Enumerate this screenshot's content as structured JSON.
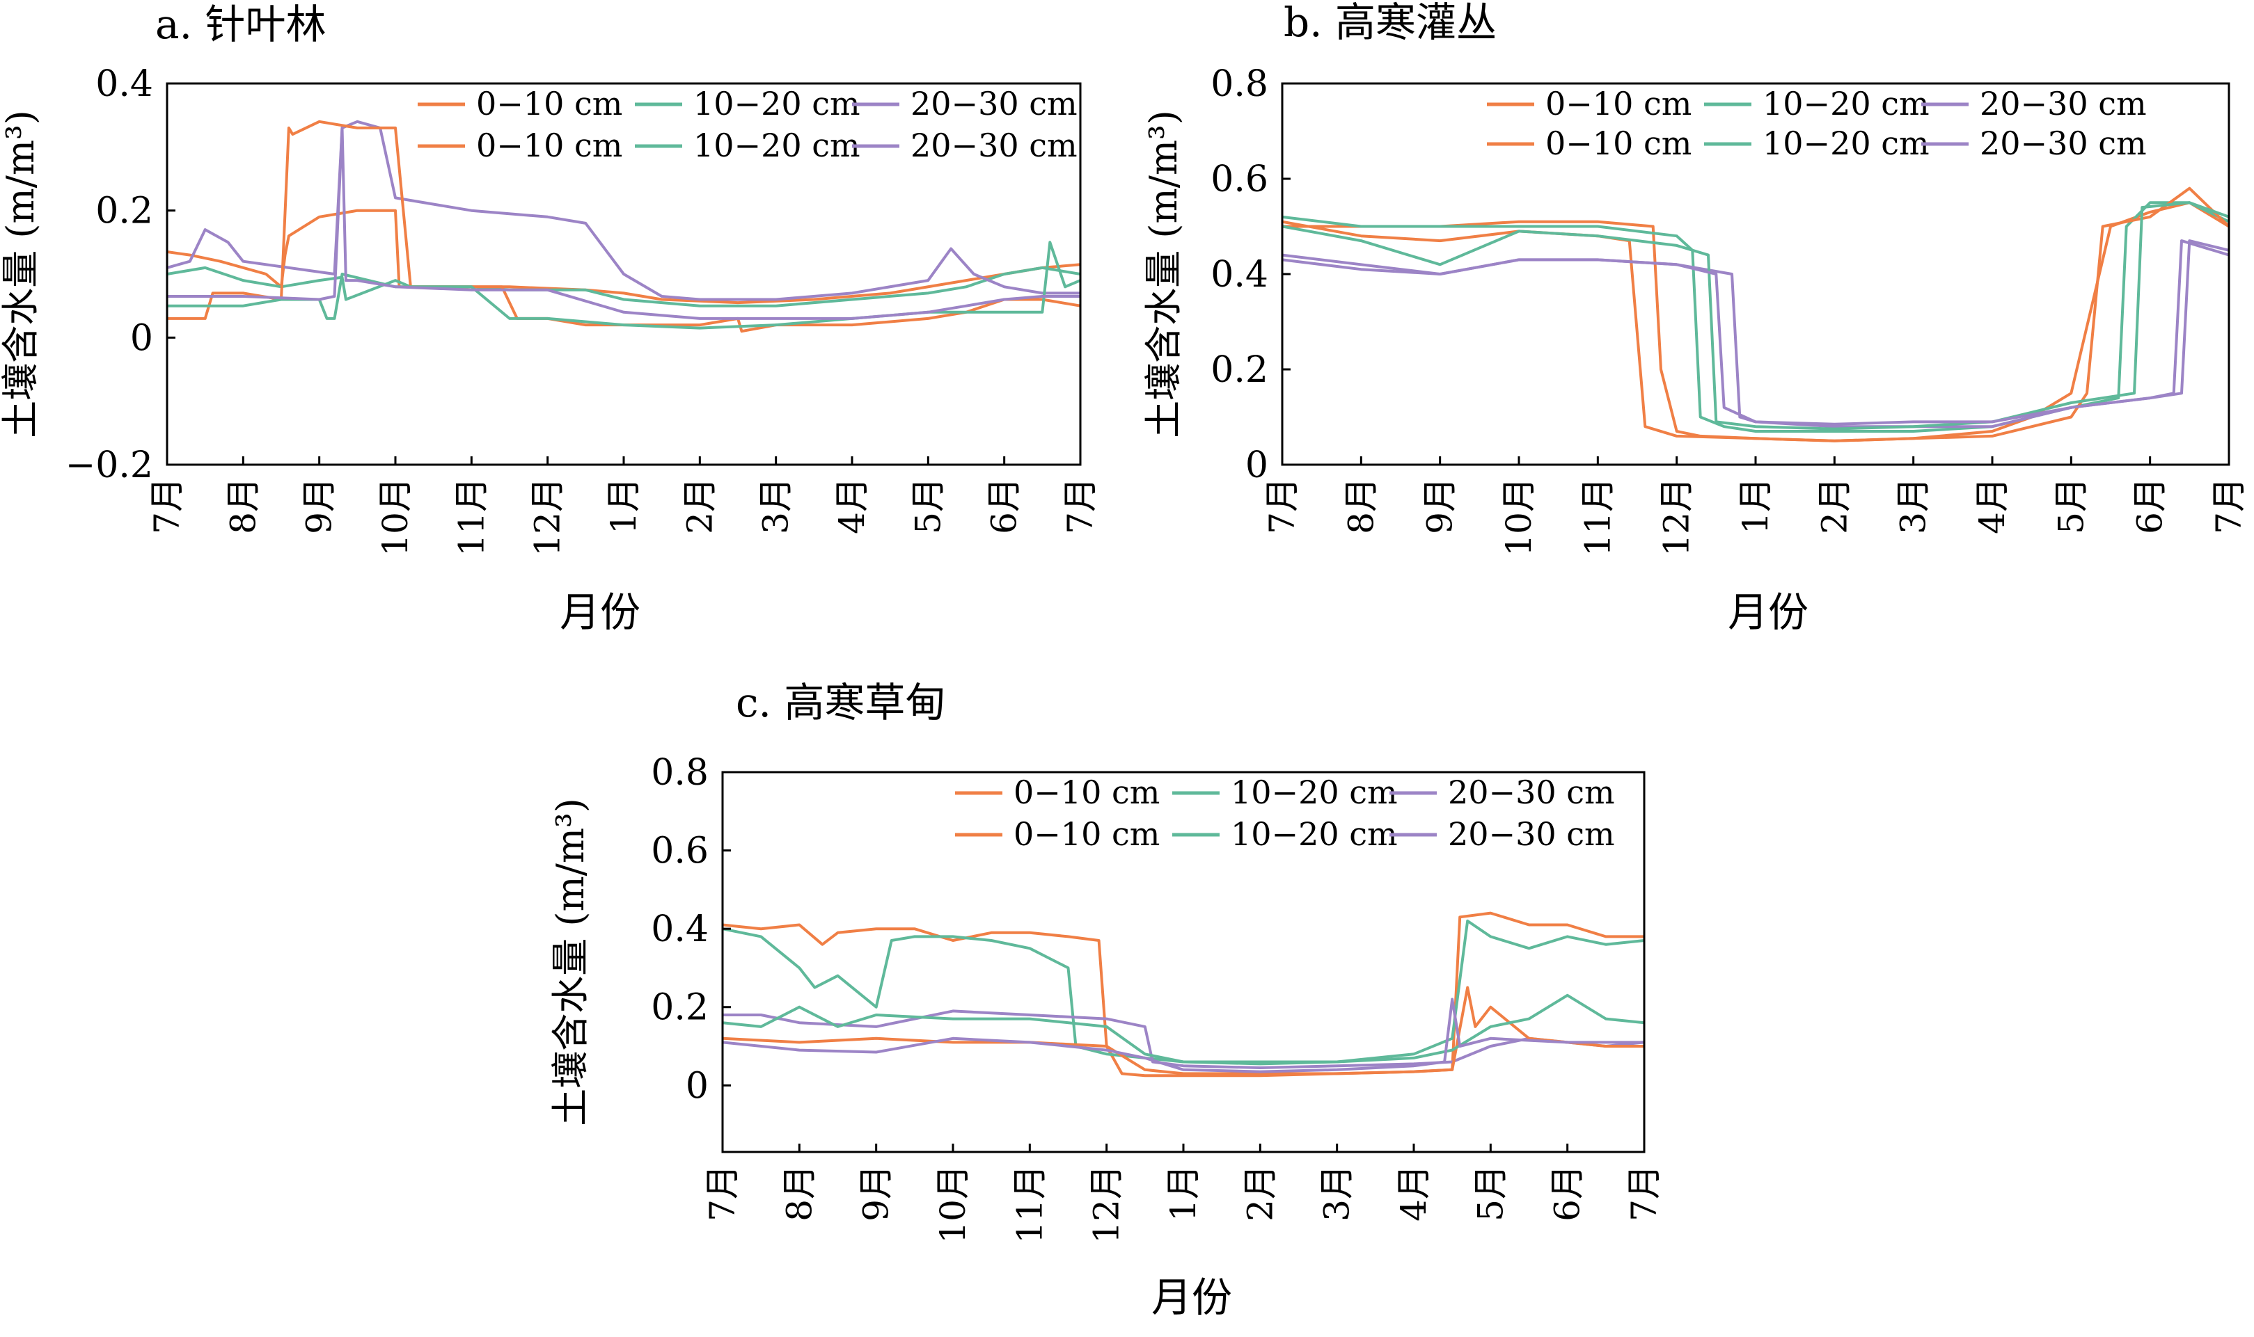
{
  "colors": {
    "orange": "#F07F45",
    "teal": "#5FB99A",
    "purple": "#9C84C6"
  },
  "chart_data": [
    {
      "type": "line",
      "title": "a. 针叶林",
      "xlabel": "月份",
      "ylabel": "土壤含水量 (m/m³)",
      "x_ticks": [
        "7月",
        "8月",
        "9月",
        "10月",
        "11月",
        "12月",
        "1月",
        "2月",
        "3月",
        "4月",
        "5月",
        "6月",
        "7月"
      ],
      "yticks": [
        "−0.2",
        "0",
        "0.2",
        "0.4"
      ],
      "ylim": [
        -0.2,
        0.4
      ],
      "legend": [
        "0−10 cm",
        "10−20 cm",
        "20−30 cm",
        "0−10 cm",
        "10−20 cm",
        "20−30 cm"
      ],
      "legend_position": "top-right",
      "series": [
        {
          "name": "0−10 cm",
          "color": "orange",
          "x": [
            0,
            0.3,
            0.7,
            1.3,
            1.5,
            1.55,
            1.6,
            2.0,
            2.5,
            3.0,
            3.05,
            3.5,
            4.0,
            4.5,
            5.5,
            6.0,
            6.5,
            7.5,
            8.5,
            9.5,
            10.5,
            11.0,
            11.5,
            12.0
          ],
          "y": [
            0.135,
            0.13,
            0.12,
            0.1,
            0.08,
            0.13,
            0.16,
            0.19,
            0.2,
            0.2,
            0.08,
            0.08,
            0.08,
            0.08,
            0.075,
            0.07,
            0.06,
            0.055,
            0.06,
            0.07,
            0.09,
            0.1,
            0.11,
            0.115
          ]
        },
        {
          "name": "10−20 cm",
          "color": "teal",
          "x": [
            0,
            0.5,
            1.0,
            1.5,
            2.0,
            2.3,
            2.35,
            3.0,
            3.2,
            3.5,
            4.0,
            4.5,
            5.0,
            5.5,
            6.0,
            7.0,
            8.0,
            9.0,
            10.0,
            10.5,
            11.0,
            11.5,
            12.0
          ],
          "y": [
            0.1,
            0.11,
            0.09,
            0.08,
            0.09,
            0.095,
            0.06,
            0.09,
            0.08,
            0.08,
            0.08,
            0.075,
            0.075,
            0.075,
            0.06,
            0.05,
            0.05,
            0.06,
            0.07,
            0.08,
            0.1,
            0.11,
            0.1
          ]
        },
        {
          "name": "20−30 cm",
          "color": "purple",
          "x": [
            0,
            0.3,
            0.5,
            0.8,
            1.0,
            2.2,
            2.3,
            2.5,
            2.8,
            3.0,
            4.0,
            5.0,
            5.5,
            6.0,
            6.5,
            7.0,
            8.0,
            9.0,
            10.0,
            10.3,
            10.6,
            11.0,
            11.5,
            12.0
          ],
          "y": [
            0.11,
            0.12,
            0.17,
            0.15,
            0.12,
            0.1,
            0.33,
            0.34,
            0.33,
            0.22,
            0.2,
            0.19,
            0.18,
            0.1,
            0.065,
            0.06,
            0.06,
            0.07,
            0.09,
            0.14,
            0.1,
            0.08,
            0.07,
            0.07
          ]
        },
        {
          "name": "0−10 cm",
          "color": "orange",
          "x": [
            0,
            0.5,
            0.6,
            1.0,
            1.5,
            1.6,
            1.65,
            2.0,
            2.5,
            3.0,
            3.2,
            3.5,
            4.0,
            4.4,
            4.6,
            5.0,
            5.5,
            6.0,
            7.0,
            7.5,
            7.55,
            8.0,
            9.0,
            10.0,
            10.5,
            11.0,
            11.5,
            12.0
          ],
          "y": [
            0.03,
            0.03,
            0.07,
            0.07,
            0.06,
            0.33,
            0.32,
            0.34,
            0.33,
            0.33,
            0.08,
            0.08,
            0.08,
            0.08,
            0.03,
            0.03,
            0.02,
            0.02,
            0.02,
            0.03,
            0.01,
            0.02,
            0.02,
            0.03,
            0.04,
            0.06,
            0.06,
            0.05
          ]
        },
        {
          "name": "10−20 cm",
          "color": "teal",
          "x": [
            0,
            0.5,
            1.0,
            1.5,
            2.0,
            2.1,
            2.2,
            2.3,
            3.0,
            4.0,
            4.5,
            5.0,
            6.0,
            7.0,
            8.0,
            9.0,
            10.0,
            10.5,
            11.0,
            11.5,
            11.6,
            11.8,
            12.0
          ],
          "y": [
            0.05,
            0.05,
            0.05,
            0.06,
            0.06,
            0.03,
            0.03,
            0.1,
            0.08,
            0.08,
            0.03,
            0.03,
            0.02,
            0.015,
            0.02,
            0.03,
            0.04,
            0.04,
            0.04,
            0.04,
            0.15,
            0.08,
            0.09
          ]
        },
        {
          "name": "20−30 cm",
          "color": "purple",
          "x": [
            0,
            1.0,
            2.0,
            2.2,
            2.3,
            2.35,
            2.5,
            3.0,
            4.0,
            5.0,
            6.0,
            7.0,
            8.0,
            9.0,
            10.0,
            10.5,
            11.0,
            11.5,
            12.0
          ],
          "y": [
            0.065,
            0.065,
            0.06,
            0.065,
            0.33,
            0.09,
            0.09,
            0.08,
            0.075,
            0.075,
            0.04,
            0.03,
            0.03,
            0.03,
            0.04,
            0.05,
            0.06,
            0.065,
            0.065
          ]
        }
      ]
    },
    {
      "type": "line",
      "title": "b. 高寒灌丛",
      "xlabel": "月份",
      "ylabel": "土壤含水量 (m/m³)",
      "x_ticks": [
        "7月",
        "8月",
        "9月",
        "10月",
        "11月",
        "12月",
        "1月",
        "2月",
        "3月",
        "4月",
        "5月",
        "6月",
        "7月"
      ],
      "yticks": [
        "0",
        "0.2",
        "0.4",
        "0.6",
        "0.8"
      ],
      "ylim": [
        0,
        0.8
      ],
      "legend": [
        "0−10 cm",
        "10−20 cm",
        "20−30 cm",
        "0−10 cm",
        "10−20 cm",
        "20−30 cm"
      ],
      "legend_position": "top-right",
      "series": [
        {
          "name": "0−10 cm",
          "color": "orange",
          "x": [
            0,
            1.0,
            2.0,
            3.0,
            4.0,
            4.7,
            4.8,
            5.0,
            5.3,
            6.0,
            7.0,
            8.0,
            9.0,
            9.5,
            10.0,
            10.5,
            11.0,
            11.5,
            12.0
          ],
          "y": [
            0.5,
            0.5,
            0.5,
            0.51,
            0.51,
            0.5,
            0.2,
            0.07,
            0.06,
            0.055,
            0.05,
            0.055,
            0.07,
            0.1,
            0.15,
            0.5,
            0.53,
            0.55,
            0.5
          ]
        },
        {
          "name": "10−20 cm",
          "color": "teal",
          "x": [
            0,
            1.0,
            2.0,
            3.0,
            4.0,
            5.0,
            5.2,
            5.3,
            5.6,
            6.0,
            7.0,
            8.0,
            9.0,
            10.0,
            10.6,
            10.7,
            11.0,
            11.5,
            12.0
          ],
          "y": [
            0.52,
            0.5,
            0.5,
            0.5,
            0.5,
            0.48,
            0.45,
            0.1,
            0.08,
            0.07,
            0.07,
            0.07,
            0.08,
            0.12,
            0.14,
            0.5,
            0.55,
            0.55,
            0.51
          ]
        },
        {
          "name": "20−30 cm",
          "color": "purple",
          "x": [
            0,
            1.0,
            2.0,
            3.0,
            4.0,
            5.0,
            5.7,
            5.8,
            6.0,
            7.0,
            8.0,
            9.0,
            10.0,
            11.0,
            11.3,
            11.4,
            12.0
          ],
          "y": [
            0.44,
            0.42,
            0.4,
            0.43,
            0.43,
            0.42,
            0.4,
            0.1,
            0.09,
            0.08,
            0.08,
            0.08,
            0.12,
            0.14,
            0.15,
            0.47,
            0.44
          ]
        },
        {
          "name": "0−10 cm",
          "color": "orange",
          "x": [
            0,
            1.0,
            2.0,
            3.0,
            4.0,
            4.4,
            4.6,
            5.0,
            6.0,
            7.0,
            8.0,
            9.0,
            10.0,
            10.2,
            10.4,
            11.0,
            11.5,
            12.0
          ],
          "y": [
            0.51,
            0.48,
            0.47,
            0.49,
            0.48,
            0.47,
            0.08,
            0.06,
            0.055,
            0.05,
            0.055,
            0.06,
            0.1,
            0.15,
            0.5,
            0.52,
            0.58,
            0.5
          ]
        },
        {
          "name": "10−20 cm",
          "color": "teal",
          "x": [
            0,
            1.0,
            2.0,
            3.0,
            4.0,
            5.0,
            5.4,
            5.5,
            6.0,
            7.0,
            8.0,
            9.0,
            10.0,
            10.8,
            10.9,
            11.5,
            12.0
          ],
          "y": [
            0.5,
            0.47,
            0.42,
            0.49,
            0.48,
            0.46,
            0.44,
            0.09,
            0.08,
            0.075,
            0.08,
            0.09,
            0.13,
            0.15,
            0.54,
            0.55,
            0.52
          ]
        },
        {
          "name": "20−30 cm",
          "color": "purple",
          "x": [
            0,
            1.0,
            2.0,
            3.0,
            4.0,
            5.0,
            5.5,
            5.6,
            6.0,
            7.0,
            8.0,
            9.0,
            10.0,
            11.0,
            11.4,
            11.5,
            12.0
          ],
          "y": [
            0.43,
            0.41,
            0.4,
            0.43,
            0.43,
            0.42,
            0.4,
            0.12,
            0.09,
            0.085,
            0.09,
            0.09,
            0.12,
            0.14,
            0.15,
            0.47,
            0.45
          ]
        }
      ]
    },
    {
      "type": "line",
      "title": "c. 高寒草甸",
      "xlabel": "月份",
      "ylabel": "土壤含水量 (m/m³)",
      "x_ticks": [
        "7月",
        "8月",
        "9月",
        "10月",
        "11月",
        "12月",
        "1月",
        "2月",
        "3月",
        "4月",
        "5月",
        "6月",
        "7月"
      ],
      "yticks": [
        "0",
        "0.2",
        "0.4",
        "0.6",
        "0.8"
      ],
      "ylim": [
        -0.17,
        0.8
      ],
      "legend": [
        "0−10 cm",
        "10−20 cm",
        "20−30 cm",
        "0−10 cm",
        "10−20 cm",
        "20−30 cm"
      ],
      "legend_position": "top-right",
      "series": [
        {
          "name": "0−10 cm",
          "color": "orange",
          "x": [
            0,
            0.5,
            1.0,
            1.3,
            1.5,
            2.0,
            2.5,
            3.0,
            3.5,
            4.0,
            4.5,
            4.9,
            5.0,
            5.2,
            5.5,
            6.0,
            7.0,
            8.0,
            9.0,
            9.5,
            9.6,
            10.0,
            10.5,
            11.0,
            11.5,
            12.0
          ],
          "y": [
            0.41,
            0.4,
            0.41,
            0.36,
            0.39,
            0.4,
            0.4,
            0.37,
            0.39,
            0.39,
            0.38,
            0.37,
            0.1,
            0.03,
            0.025,
            0.025,
            0.025,
            0.03,
            0.035,
            0.04,
            0.43,
            0.44,
            0.41,
            0.41,
            0.38,
            0.38
          ]
        },
        {
          "name": "10−20 cm",
          "color": "teal",
          "x": [
            0,
            0.5,
            1.0,
            1.2,
            1.5,
            2.0,
            2.2,
            2.5,
            3.0,
            3.5,
            4.0,
            4.5,
            4.6,
            5.0,
            5.5,
            6.0,
            7.0,
            8.0,
            9.0,
            9.5,
            9.7,
            10.0,
            10.5,
            11.0,
            11.5,
            12.0
          ],
          "y": [
            0.4,
            0.38,
            0.3,
            0.25,
            0.28,
            0.2,
            0.37,
            0.38,
            0.38,
            0.37,
            0.35,
            0.3,
            0.1,
            0.08,
            0.07,
            0.06,
            0.06,
            0.06,
            0.08,
            0.12,
            0.42,
            0.38,
            0.35,
            0.38,
            0.36,
            0.37
          ]
        },
        {
          "name": "20−30 cm",
          "color": "purple",
          "x": [
            0,
            0.5,
            1.0,
            2.0,
            3.0,
            4.0,
            5.0,
            5.5,
            5.6,
            6.0,
            7.0,
            8.0,
            9.0,
            9.5,
            10.0,
            10.5,
            11.0,
            11.5,
            12.0
          ],
          "y": [
            0.18,
            0.18,
            0.16,
            0.15,
            0.19,
            0.18,
            0.17,
            0.15,
            0.06,
            0.05,
            0.045,
            0.05,
            0.055,
            0.06,
            0.1,
            0.12,
            0.11,
            0.1,
            0.11
          ]
        },
        {
          "name": "0−10 cm",
          "color": "orange",
          "x": [
            0,
            1.0,
            2.0,
            3.0,
            4.0,
            5.0,
            5.5,
            6.0,
            7.0,
            8.0,
            9.0,
            9.5,
            9.7,
            9.8,
            10.0,
            10.5,
            11.0,
            11.5,
            12.0
          ],
          "y": [
            0.12,
            0.11,
            0.12,
            0.11,
            0.11,
            0.1,
            0.04,
            0.03,
            0.03,
            0.03,
            0.035,
            0.04,
            0.25,
            0.15,
            0.2,
            0.12,
            0.11,
            0.1,
            0.1
          ]
        },
        {
          "name": "10−20 cm",
          "color": "teal",
          "x": [
            0,
            0.5,
            1.0,
            1.5,
            2.0,
            3.0,
            4.0,
            5.0,
            5.5,
            6.0,
            7.0,
            8.0,
            9.0,
            9.5,
            10.0,
            10.5,
            11.0,
            11.5,
            12.0
          ],
          "y": [
            0.16,
            0.15,
            0.2,
            0.15,
            0.18,
            0.17,
            0.17,
            0.15,
            0.08,
            0.06,
            0.055,
            0.06,
            0.07,
            0.09,
            0.15,
            0.17,
            0.23,
            0.17,
            0.16
          ]
        },
        {
          "name": "20−30 cm",
          "color": "purple",
          "x": [
            0,
            1.0,
            2.0,
            3.0,
            4.0,
            5.0,
            5.5,
            6.0,
            7.0,
            8.0,
            9.0,
            9.4,
            9.5,
            9.6,
            10.0,
            11.0,
            12.0
          ],
          "y": [
            0.11,
            0.09,
            0.085,
            0.12,
            0.11,
            0.09,
            0.07,
            0.04,
            0.035,
            0.04,
            0.05,
            0.06,
            0.22,
            0.1,
            0.12,
            0.11,
            0.11
          ]
        }
      ]
    }
  ]
}
